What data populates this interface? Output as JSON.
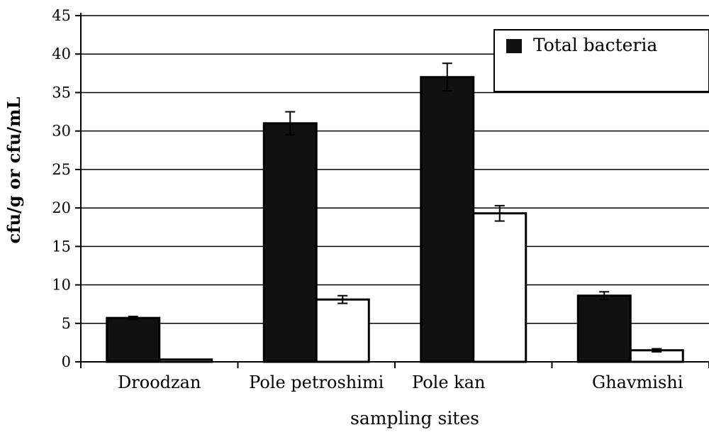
{
  "chart_data": {
    "type": "bar",
    "title": "",
    "xlabel": "sampling sites",
    "ylabel": "cfu/g or cfu/mL",
    "categories": [
      "Droodzan",
      "Pole petroshimi",
      "Pole kan",
      "Ghavmishi"
    ],
    "series": [
      {
        "name": "Total bacteria",
        "values": [
          5.7,
          31.0,
          37.0,
          8.6
        ],
        "errors": [
          0.2,
          1.5,
          1.8,
          0.5
        ],
        "color": "#111111"
      },
      {
        "values": [
          0.3,
          8.1,
          19.3,
          1.5
        ],
        "errors": [
          0.0,
          0.5,
          1.0,
          0.2
        ],
        "color": "#ffffff"
      }
    ],
    "ylim": [
      0,
      45
    ],
    "yticks": [
      0,
      5,
      10,
      15,
      20,
      25,
      30,
      35,
      40,
      45
    ],
    "grid": true,
    "legend": "top-right"
  }
}
